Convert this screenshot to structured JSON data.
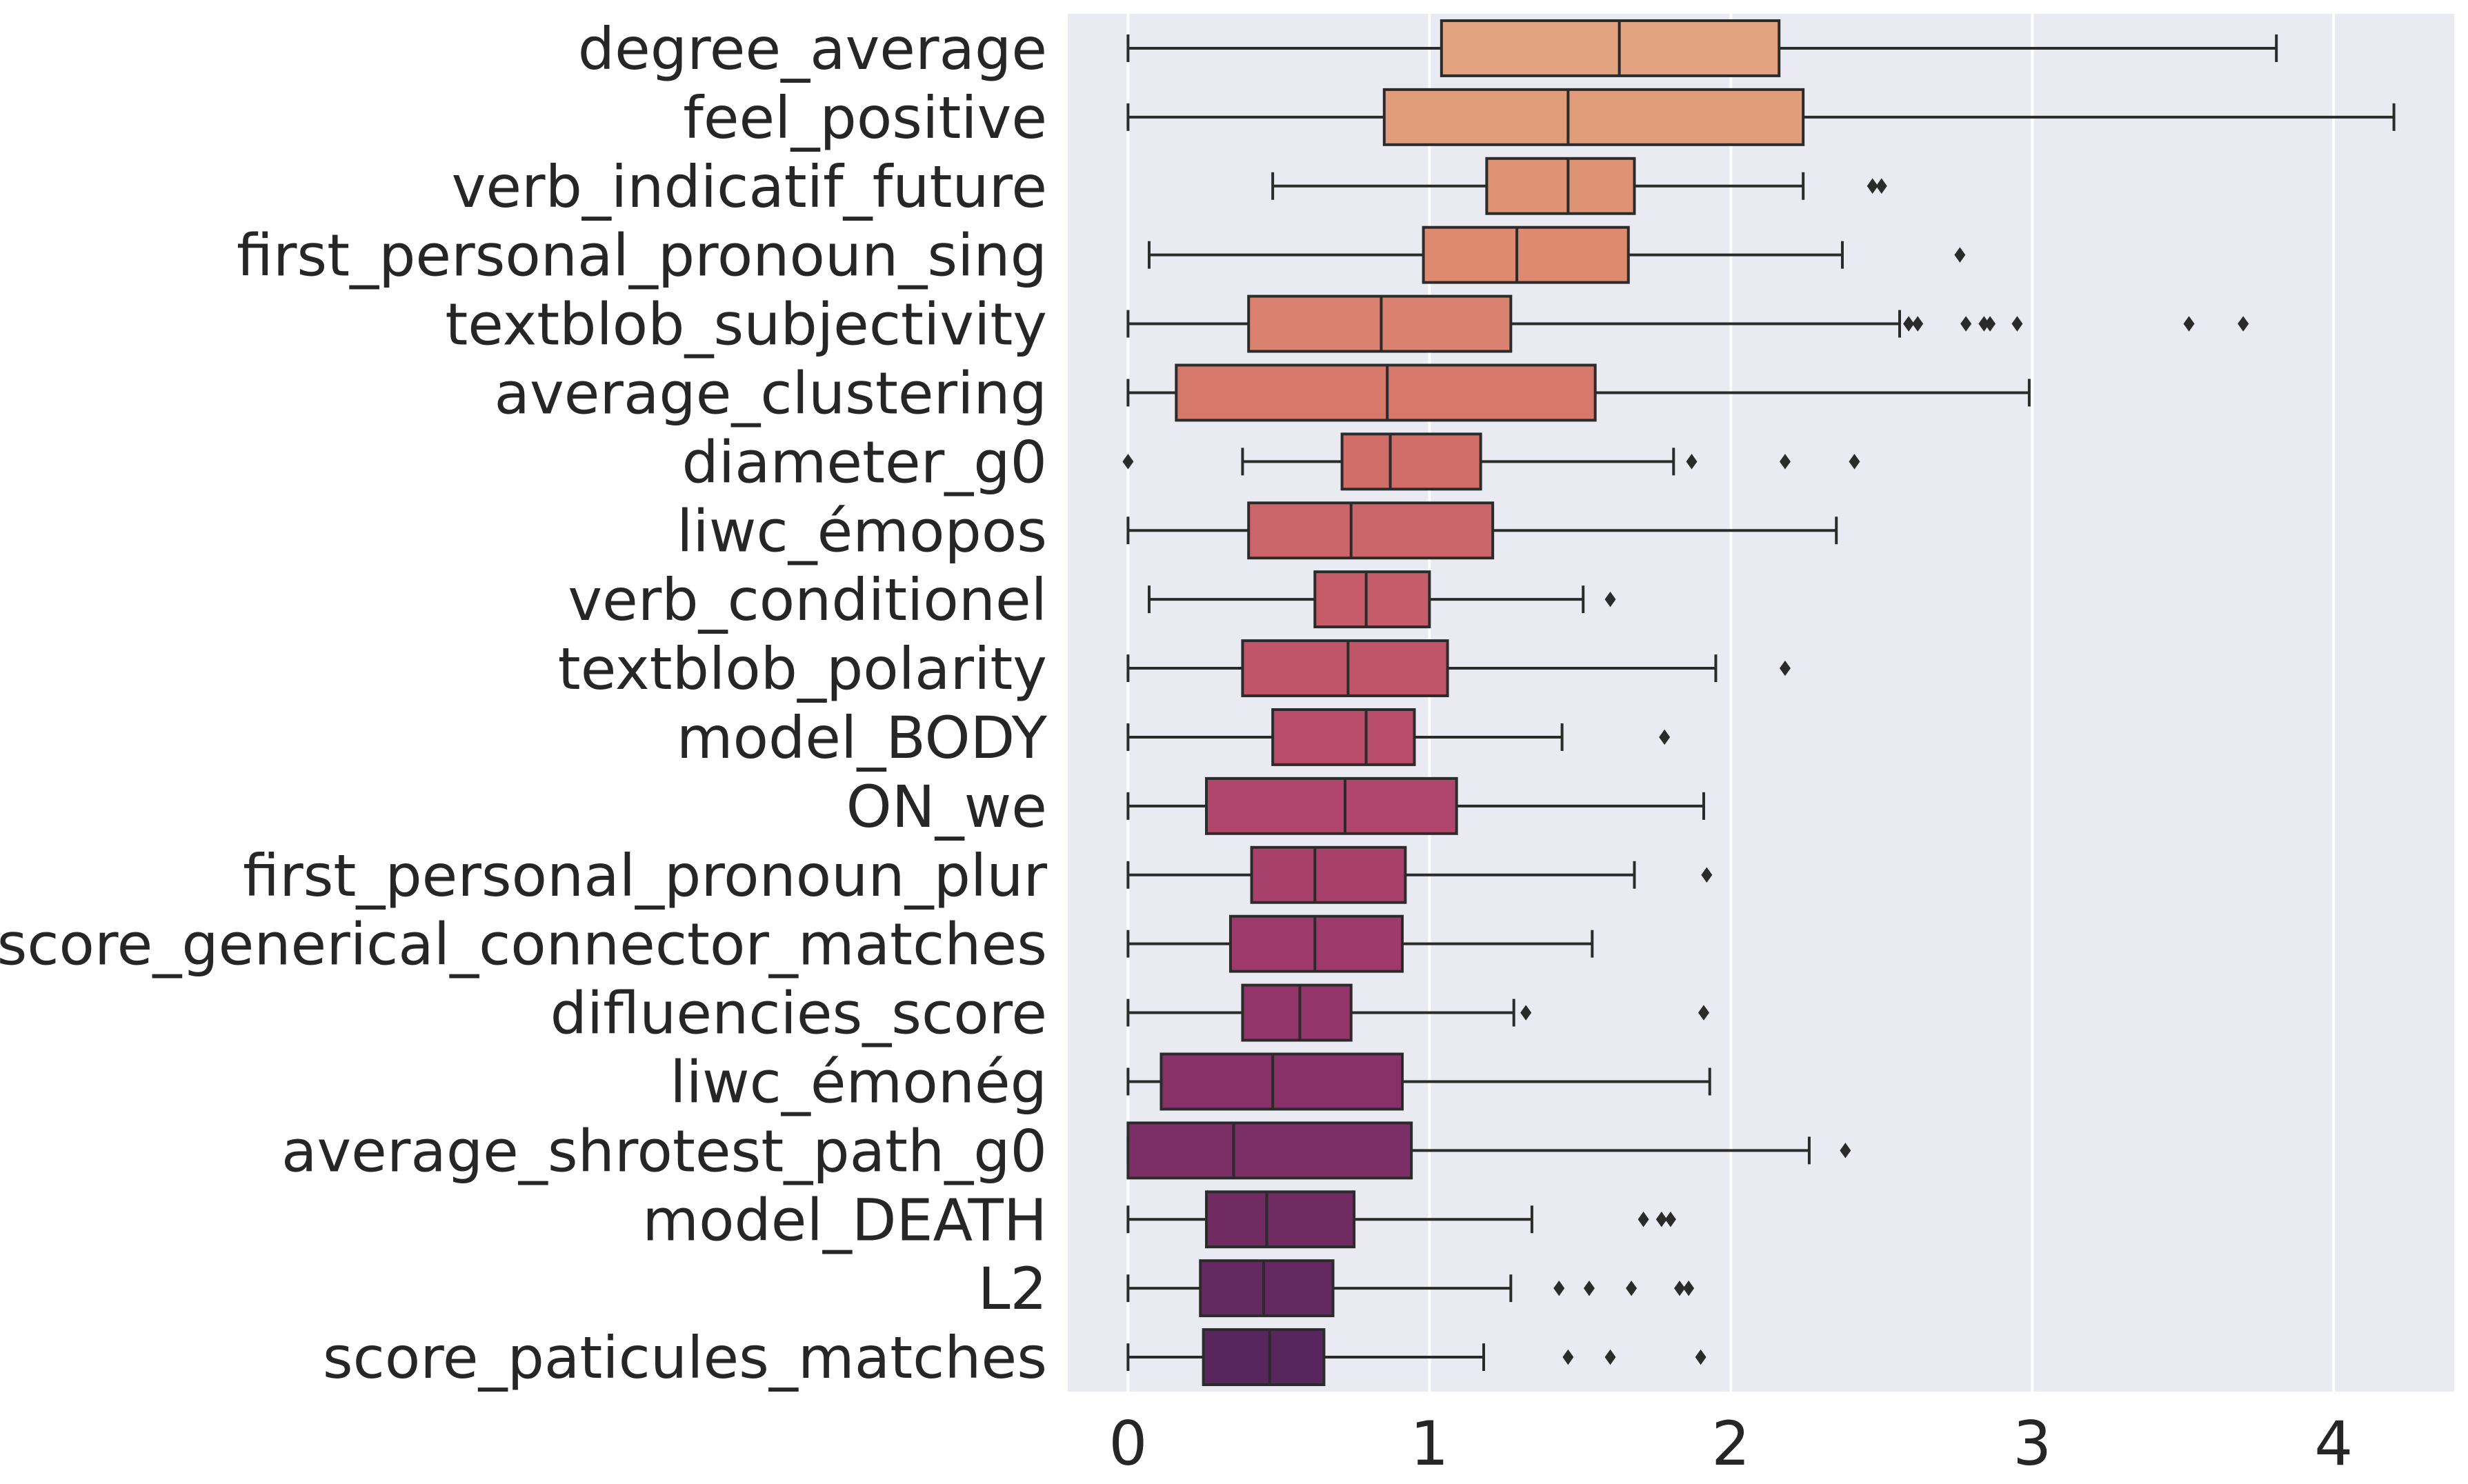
{
  "chart_data": {
    "type": "boxplot",
    "orientation": "horizontal",
    "xlim": [
      -0.2,
      4.4
    ],
    "xticks": [
      0,
      1,
      2,
      3,
      4
    ],
    "xlabel": "",
    "ylabel": "",
    "grid": "vertical",
    "background": "#eaeaf2",
    "categories": [
      {
        "name": "degree_average",
        "whislo": 0.0,
        "q1": 1.04,
        "med": 1.63,
        "q3": 2.16,
        "whishi": 3.81,
        "fliers": [],
        "color": "#e2a480"
      },
      {
        "name": "feel_positive",
        "whislo": 0.0,
        "q1": 0.85,
        "med": 1.46,
        "q3": 2.24,
        "whishi": 4.2,
        "fliers": [],
        "color": "#e19c7a"
      },
      {
        "name": "verb_indicatif_future",
        "whislo": 0.48,
        "q1": 1.19,
        "med": 1.46,
        "q3": 1.68,
        "whishi": 2.24,
        "fliers": [
          2.47,
          2.5
        ],
        "color": "#df9375"
      },
      {
        "name": "first_personal_pronoun_sing",
        "whislo": 0.07,
        "q1": 0.98,
        "med": 1.29,
        "q3": 1.66,
        "whishi": 2.37,
        "fliers": [
          2.76
        ],
        "color": "#dd8a70"
      },
      {
        "name": "textblob_subjectivity",
        "whislo": 0.0,
        "q1": 0.4,
        "med": 0.84,
        "q3": 1.27,
        "whishi": 2.56,
        "fliers": [
          2.59,
          2.62,
          2.78,
          2.84,
          2.86,
          2.95,
          3.52,
          3.7
        ],
        "color": "#da8170"
      },
      {
        "name": "average_clustering",
        "whislo": 0.0,
        "q1": 0.16,
        "med": 0.86,
        "q3": 1.55,
        "whishi": 2.99,
        "fliers": [],
        "color": "#d6786c"
      },
      {
        "name": "diameter_g0",
        "whislo": 0.38,
        "q1": 0.71,
        "med": 0.87,
        "q3": 1.17,
        "whishi": 1.81,
        "fliers": [
          0.0,
          1.87,
          2.18,
          2.41
        ],
        "color": "#d16e6a"
      },
      {
        "name": "liwc_émopos",
        "whislo": 0.0,
        "q1": 0.4,
        "med": 0.74,
        "q3": 1.21,
        "whishi": 2.35,
        "fliers": [],
        "color": "#cc656a"
      },
      {
        "name": "verb_conditionel",
        "whislo": 0.07,
        "q1": 0.62,
        "med": 0.79,
        "q3": 1.0,
        "whishi": 1.51,
        "fliers": [
          1.6
        ],
        "color": "#c65c69"
      },
      {
        "name": "textblob_polarity",
        "whislo": 0.0,
        "q1": 0.38,
        "med": 0.73,
        "q3": 1.06,
        "whishi": 1.95,
        "fliers": [
          2.18
        ],
        "color": "#c05469"
      },
      {
        "name": "model_BODY",
        "whislo": 0.0,
        "q1": 0.48,
        "med": 0.79,
        "q3": 0.95,
        "whishi": 1.44,
        "fliers": [
          1.78
        ],
        "color": "#b94d6a"
      },
      {
        "name": "ON_we",
        "whislo": 0.0,
        "q1": 0.26,
        "med": 0.72,
        "q3": 1.09,
        "whishi": 1.91,
        "fliers": [],
        "color": "#b1466c"
      },
      {
        "name": "first_personal_pronoun_plur",
        "whislo": 0.0,
        "q1": 0.41,
        "med": 0.62,
        "q3": 0.92,
        "whishi": 1.68,
        "fliers": [
          1.92
        ],
        "color": "#a8406c"
      },
      {
        "name": "score_generical_connector_matches",
        "whislo": 0.0,
        "q1": 0.34,
        "med": 0.62,
        "q3": 0.91,
        "whishi": 1.54,
        "fliers": [],
        "color": "#9e3a6b"
      },
      {
        "name": "difluencies_score",
        "whislo": 0.0,
        "q1": 0.38,
        "med": 0.57,
        "q3": 0.74,
        "whishi": 1.28,
        "fliers": [
          1.32,
          1.91
        ],
        "color": "#93356a"
      },
      {
        "name": "liwc_émonég",
        "whislo": 0.0,
        "q1": 0.11,
        "med": 0.48,
        "q3": 0.91,
        "whishi": 1.93,
        "fliers": [],
        "color": "#883168"
      },
      {
        "name": "average_shrotest_path_g0",
        "whislo": 0.0,
        "q1": 0.0,
        "med": 0.35,
        "q3": 0.94,
        "whishi": 2.26,
        "fliers": [
          2.38
        ],
        "color": "#7c2e66"
      },
      {
        "name": "model_DEATH",
        "whislo": 0.0,
        "q1": 0.26,
        "med": 0.46,
        "q3": 0.75,
        "whishi": 1.34,
        "fliers": [
          1.71,
          1.77,
          1.8
        ],
        "color": "#702b63"
      },
      {
        "name": "L2",
        "whislo": 0.0,
        "q1": 0.24,
        "med": 0.45,
        "q3": 0.68,
        "whishi": 1.27,
        "fliers": [
          1.43,
          1.53,
          1.67,
          1.83,
          1.86
        ],
        "color": "#632960"
      },
      {
        "name": "score_paticules_matches",
        "whislo": 0.0,
        "q1": 0.25,
        "med": 0.47,
        "q3": 0.65,
        "whishi": 1.18,
        "fliers": [
          1.46,
          1.6,
          1.9
        ],
        "color": "#56265c"
      }
    ]
  }
}
